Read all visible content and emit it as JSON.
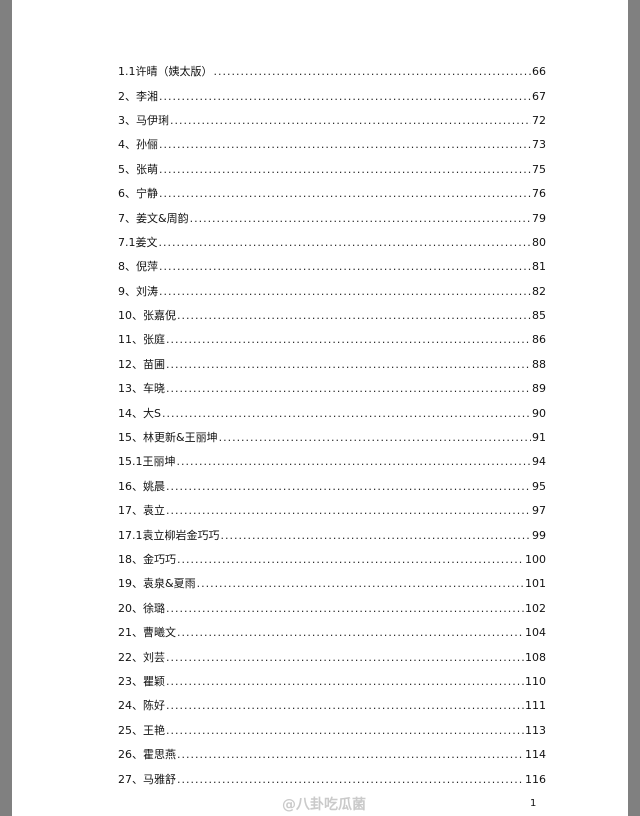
{
  "toc": [
    {
      "title": "1.1许晴（姨太版）",
      "page": "66"
    },
    {
      "title": "2、李湘",
      "page": "67"
    },
    {
      "title": "3、马伊琍",
      "page": "72"
    },
    {
      "title": "4、孙俪",
      "page": "73"
    },
    {
      "title": "5、张萌",
      "page": "75"
    },
    {
      "title": "6、宁静",
      "page": "76"
    },
    {
      "title": "7、姜文&周韵",
      "page": "79"
    },
    {
      "title": "7.1姜文",
      "page": "80"
    },
    {
      "title": "8、倪萍",
      "page": "81"
    },
    {
      "title": "9、刘涛",
      "page": "82"
    },
    {
      "title": "10、张嘉倪",
      "page": "85"
    },
    {
      "title": "11、张庭",
      "page": "86"
    },
    {
      "title": "12、苗圃",
      "page": "88"
    },
    {
      "title": "13、车晓",
      "page": "89"
    },
    {
      "title": "14、大S",
      "page": "90"
    },
    {
      "title": "15、林更新&王丽坤",
      "page": "91"
    },
    {
      "title": "15.1王丽坤",
      "page": "94"
    },
    {
      "title": "16、姚晨",
      "page": "95"
    },
    {
      "title": "17、袁立",
      "page": "97"
    },
    {
      "title": "17.1袁立柳岩金巧巧",
      "page": "99"
    },
    {
      "title": "18、金巧巧",
      "page": "100"
    },
    {
      "title": "19、袁泉&夏雨",
      "page": "101"
    },
    {
      "title": "20、徐璐",
      "page": "102"
    },
    {
      "title": "21、曹曦文",
      "page": "104"
    },
    {
      "title": "22、刘芸",
      "page": "108"
    },
    {
      "title": "23、瞿颖",
      "page": "110"
    },
    {
      "title": "24、陈好",
      "page": "111"
    },
    {
      "title": "25、王艳",
      "page": "113"
    },
    {
      "title": "26、霍思燕",
      "page": "114"
    },
    {
      "title": "27、马雅舒",
      "page": "116"
    }
  ],
  "page_number": "1",
  "watermark": "@八卦吃瓜菌"
}
